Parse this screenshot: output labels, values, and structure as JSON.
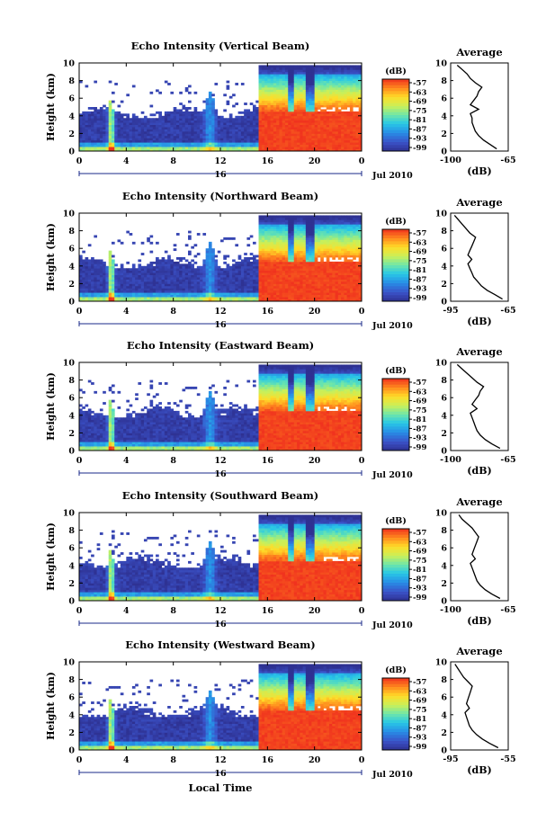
{
  "figure": {
    "xlabel": "Local Time",
    "date_label": "Jul 2010",
    "day_marker": "16",
    "colorbar_label": "(dB)",
    "avg_title": "Average",
    "avg_xlabel": "(dB)"
  },
  "chart_data": [
    {
      "type": "heatmap",
      "title": "Echo Intensity (Vertical Beam)",
      "ylabel": "Height (km)",
      "xlabel": "",
      "x_ticks": [
        "0",
        "4",
        "8",
        "12",
        "16",
        "20",
        "0"
      ],
      "xlim": [
        0,
        24
      ],
      "y_ticks": [
        "0",
        "2",
        "4",
        "6",
        "8",
        "10"
      ],
      "ylim": [
        0,
        10
      ],
      "colorbar_ticks": [
        "-57",
        "-63",
        "-69",
        "-75",
        "-81",
        "-87",
        "-93",
        "-99"
      ],
      "avg_profile": {
        "title": "Average",
        "xlabel": "(dB)",
        "x_ticks": [
          "-100",
          "-65"
        ],
        "xlim": [
          -100,
          -65
        ],
        "y_ticks": [
          "0",
          "2",
          "4",
          "6",
          "8",
          "10"
        ],
        "ylim": [
          0,
          10
        ],
        "height": [
          0,
          0.5,
          1,
          1.5,
          2,
          2.5,
          3,
          3.5,
          4,
          4.5,
          5,
          5.5,
          6,
          6.5,
          7,
          7.5,
          8,
          8.5,
          9,
          9.5
        ],
        "values": [
          -72,
          -76,
          -80,
          -83,
          -85,
          -86,
          -87,
          -87,
          -88,
          -83,
          -88,
          -86,
          -84,
          -83,
          -81,
          -85,
          -88,
          -90,
          -93,
          -96
        ]
      }
    },
    {
      "type": "heatmap",
      "title": "Echo Intensity (Northward Beam)",
      "ylabel": "Height (km)",
      "xlabel": "",
      "x_ticks": [
        "0",
        "4",
        "8",
        "12",
        "16",
        "20",
        "0"
      ],
      "xlim": [
        0,
        24
      ],
      "y_ticks": [
        "0",
        "2",
        "4",
        "6",
        "8",
        "10"
      ],
      "ylim": [
        0,
        10
      ],
      "colorbar_ticks": [
        "-57",
        "-63",
        "-69",
        "-75",
        "-81",
        "-87",
        "-93",
        "-99"
      ],
      "avg_profile": {
        "title": "Average",
        "xlabel": "(dB)",
        "x_ticks": [
          "-95",
          "-65"
        ],
        "xlim": [
          -95,
          -65
        ],
        "y_ticks": [
          "0",
          "2",
          "4",
          "6",
          "8",
          "10"
        ],
        "ylim": [
          0,
          10
        ],
        "height": [
          0,
          0.5,
          1,
          1.5,
          2,
          2.5,
          3,
          3.5,
          4,
          4.5,
          5,
          5.5,
          6,
          6.5,
          7,
          7.5,
          8,
          8.5,
          9,
          9.5
        ],
        "values": [
          -68,
          -72,
          -76,
          -79,
          -81,
          -83,
          -84,
          -85,
          -86,
          -84,
          -86,
          -85,
          -84,
          -83,
          -82,
          -85,
          -87,
          -89,
          -91,
          -93
        ]
      }
    },
    {
      "type": "heatmap",
      "title": "Echo Intensity (Eastward Beam)",
      "ylabel": "Height (km)",
      "xlabel": "",
      "x_ticks": [
        "0",
        "4",
        "8",
        "12",
        "16",
        "20",
        "0"
      ],
      "xlim": [
        0,
        24
      ],
      "y_ticks": [
        "0",
        "2",
        "4",
        "6",
        "8",
        "10"
      ],
      "ylim": [
        0,
        10
      ],
      "colorbar_ticks": [
        "-57",
        "-63",
        "-69",
        "-75",
        "-81",
        "-87",
        "-93",
        "-99"
      ],
      "avg_profile": {
        "title": "Average",
        "xlabel": "(dB)",
        "x_ticks": [
          "-100",
          "-65"
        ],
        "xlim": [
          -100,
          -65
        ],
        "y_ticks": [
          "0",
          "2",
          "4",
          "6",
          "8",
          "10"
        ],
        "ylim": [
          0,
          10
        ],
        "height": [
          0,
          0.5,
          1,
          1.5,
          2,
          2.5,
          3,
          3.5,
          4,
          4.5,
          5,
          5.5,
          6,
          6.5,
          7,
          7.5,
          8,
          8.5,
          9,
          9.5
        ],
        "values": [
          -70,
          -75,
          -79,
          -82,
          -84,
          -85,
          -86,
          -87,
          -88,
          -84,
          -87,
          -85,
          -83,
          -82,
          -80,
          -84,
          -87,
          -90,
          -93,
          -96
        ]
      }
    },
    {
      "type": "heatmap",
      "title": "Echo Intensity (Southward Beam)",
      "ylabel": "Height (km)",
      "xlabel": "",
      "x_ticks": [
        "0",
        "4",
        "8",
        "12",
        "16",
        "20",
        "0"
      ],
      "xlim": [
        0,
        24
      ],
      "y_ticks": [
        "0",
        "2",
        "4",
        "6",
        "8",
        "10"
      ],
      "ylim": [
        0,
        10
      ],
      "colorbar_ticks": [
        "-57",
        "-63",
        "-69",
        "-75",
        "-81",
        "-87",
        "-93",
        "-99"
      ],
      "avg_profile": {
        "title": "Average",
        "xlabel": "(dB)",
        "x_ticks": [
          "-100",
          "-65"
        ],
        "xlim": [
          -100,
          -65
        ],
        "y_ticks": [
          "0",
          "2",
          "4",
          "6",
          "8",
          "10"
        ],
        "ylim": [
          0,
          10
        ],
        "height": [
          0,
          0.5,
          1,
          1.5,
          2,
          2.5,
          3,
          3.5,
          4,
          4.5,
          5,
          5.5,
          6,
          6.5,
          7,
          7.5,
          8,
          8.5,
          9,
          9.5
        ],
        "values": [
          -70,
          -75,
          -79,
          -82,
          -84,
          -85,
          -86,
          -87,
          -88,
          -85,
          -87,
          -86,
          -85,
          -84,
          -83,
          -85,
          -87,
          -90,
          -93,
          -95
        ]
      }
    },
    {
      "type": "heatmap",
      "title": "Echo Intensity (Westward Beam)",
      "ylabel": "Height (km)",
      "xlabel": "Local Time",
      "x_ticks": [
        "0",
        "4",
        "8",
        "12",
        "16",
        "20",
        "0"
      ],
      "xlim": [
        0,
        24
      ],
      "y_ticks": [
        "0",
        "2",
        "4",
        "6",
        "8",
        "10"
      ],
      "ylim": [
        0,
        10
      ],
      "colorbar_ticks": [
        "-57",
        "-63",
        "-69",
        "-75",
        "-81",
        "-87",
        "-93",
        "-99"
      ],
      "avg_profile": {
        "title": "Average",
        "xlabel": "(dB)",
        "x_ticks": [
          "-95",
          "-55"
        ],
        "xlim": [
          -95,
          -55
        ],
        "y_ticks": [
          "0",
          "2",
          "4",
          "6",
          "8",
          "10"
        ],
        "ylim": [
          0,
          10
        ],
        "height": [
          0,
          0.5,
          1,
          1.5,
          2,
          2.5,
          3,
          3.5,
          4,
          4.5,
          5,
          5.5,
          6,
          6.5,
          7,
          7.5,
          8,
          8.5,
          9,
          9.5
        ],
        "values": [
          -62,
          -68,
          -73,
          -77,
          -80,
          -82,
          -83,
          -84,
          -85,
          -82,
          -84,
          -83,
          -82,
          -81,
          -80,
          -83,
          -86,
          -88,
          -90,
          -92
        ]
      }
    }
  ]
}
